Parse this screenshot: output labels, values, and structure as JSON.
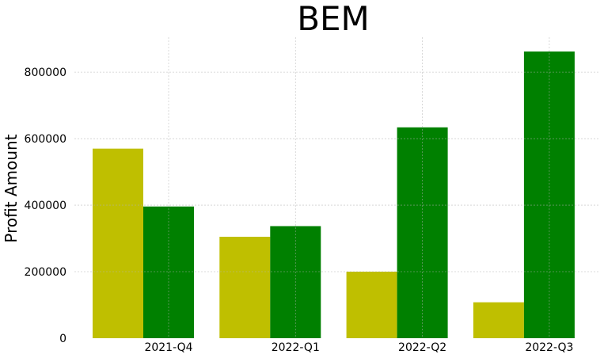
{
  "chart_data": {
    "type": "bar",
    "title": "BEM",
    "xlabel": "",
    "ylabel": "Profit Amount",
    "categories": [
      "2021-Q4",
      "2022-Q1",
      "2022-Q2",
      "2022-Q3"
    ],
    "series": [
      {
        "values": [
          570000,
          305000,
          200000,
          108000
        ],
        "color": "#bfbf00"
      },
      {
        "values": [
          396000,
          337000,
          634000,
          862000
        ],
        "color": "#008000"
      }
    ],
    "yticks": [
      0,
      200000,
      400000,
      600000,
      800000
    ],
    "ytick_labels": [
      "0",
      "200000",
      "400000",
      "600000",
      "800000"
    ],
    "ylim": [
      0,
      905000
    ],
    "grid": true,
    "legend": "none"
  }
}
